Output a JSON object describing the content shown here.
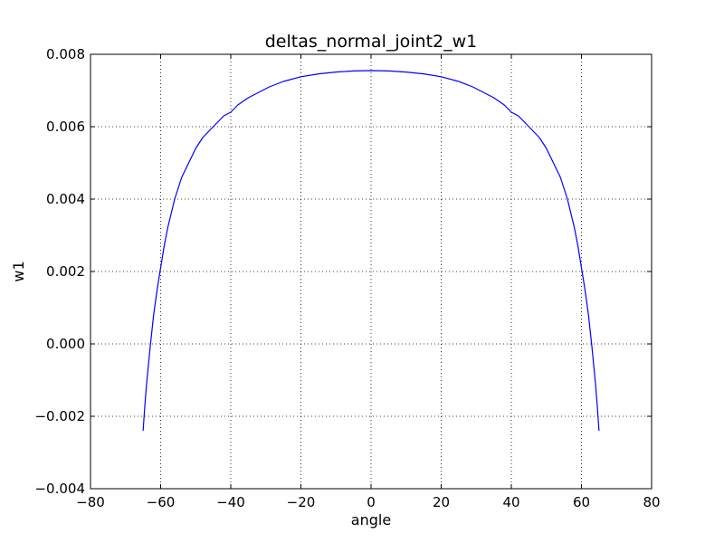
{
  "chart_data": {
    "type": "line",
    "title": "deltas_normal_joint2_w1",
    "xlabel": "angle",
    "ylabel": "w1",
    "xlim": [
      -80,
      80
    ],
    "ylim": [
      -0.004,
      0.008
    ],
    "grid": true,
    "legend": "none",
    "x_ticks": [
      -80,
      -60,
      -40,
      -20,
      0,
      20,
      40,
      60,
      80
    ],
    "x_tick_labels": [
      "−80",
      "−60",
      "−40",
      "−20",
      "0",
      "20",
      "40",
      "60",
      "80"
    ],
    "y_ticks": [
      -0.004,
      -0.002,
      0.0,
      0.002,
      0.004,
      0.006,
      0.008
    ],
    "y_tick_labels": [
      "−0.004",
      "−0.002",
      "0.000",
      "0.002",
      "0.004",
      "0.006",
      "0.008"
    ],
    "colors": {
      "line": "#0000ff",
      "grid": "#000000",
      "axes": "#000000"
    },
    "series": [
      {
        "x": [
          -65,
          -64.5,
          -64,
          -63.5,
          -63,
          -62,
          -61,
          -60,
          -59,
          -58,
          -57,
          -56,
          -55,
          -54,
          -53,
          -52,
          -50,
          -48,
          -46,
          -44,
          -42,
          -40,
          -38,
          -35,
          -32,
          -29,
          -25,
          -20,
          -15,
          -10,
          -5,
          0,
          5,
          10,
          15,
          20,
          25,
          29,
          32,
          35,
          38,
          40,
          42,
          44,
          46,
          48,
          50,
          52,
          53,
          54,
          55,
          56,
          57,
          58,
          59,
          60,
          61,
          62,
          63,
          63.5,
          64,
          64.5,
          65
        ],
        "y": [
          -0.0024,
          -0.0017,
          -0.0011,
          -0.0006,
          -0.0001,
          0.0008,
          0.0015,
          0.0021,
          0.0027,
          0.0032,
          0.0036,
          0.004,
          0.0043,
          0.0046,
          0.0048,
          0.005,
          0.0054,
          0.0057,
          0.0059,
          0.0061,
          0.0063,
          0.0064,
          0.0066,
          0.0068,
          0.00695,
          0.0071,
          0.00725,
          0.00738,
          0.00746,
          0.00751,
          0.00754,
          0.00755,
          0.00754,
          0.00751,
          0.00746,
          0.00738,
          0.00725,
          0.0071,
          0.00695,
          0.0068,
          0.0066,
          0.0064,
          0.0063,
          0.0061,
          0.0059,
          0.0057,
          0.0054,
          0.005,
          0.0048,
          0.0046,
          0.0043,
          0.004,
          0.0036,
          0.0032,
          0.0027,
          0.0021,
          0.0015,
          0.0008,
          -0.0001,
          -0.0006,
          -0.0011,
          -0.0017,
          -0.0024
        ]
      }
    ]
  }
}
